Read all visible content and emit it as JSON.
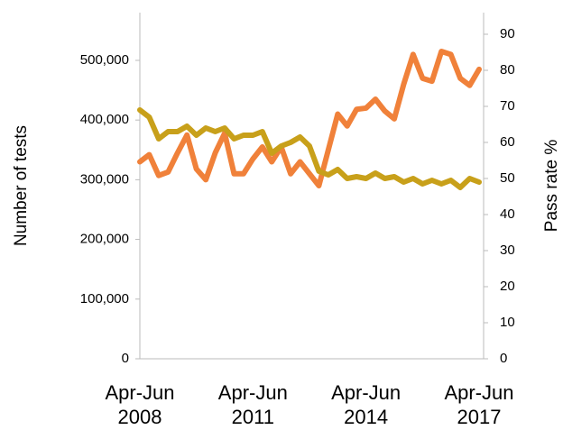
{
  "chart_data": {
    "type": "line",
    "y_label": "Number of tests",
    "y2_label": "Pass rate %",
    "categories": [
      "Apr-Jun 2008",
      null,
      null,
      null,
      null,
      null,
      null,
      null,
      null,
      null,
      null,
      null,
      "Apr-Jun 2011",
      null,
      null,
      null,
      null,
      null,
      null,
      null,
      null,
      null,
      null,
      null,
      "Apr-Jun 2014",
      null,
      null,
      null,
      null,
      null,
      null,
      null,
      null,
      null,
      null,
      null,
      "Apr-Jun 2017"
    ],
    "series": [
      {
        "name": "Number of tests",
        "color": "#f0813a",
        "axis": "y",
        "values": [
          330000,
          342000,
          307000,
          313000,
          345000,
          375000,
          318000,
          300000,
          345000,
          378000,
          310000,
          310000,
          335000,
          355000,
          330000,
          355000,
          310000,
          330000,
          310000,
          290000,
          350000,
          410000,
          390000,
          418000,
          420000,
          435000,
          415000,
          402000,
          460000,
          510000,
          470000,
          465000,
          515000,
          510000,
          470000,
          458000,
          485000
        ]
      },
      {
        "name": "Pass rate %",
        "color": "#c8a01a",
        "axis": "y2",
        "values": [
          69,
          67,
          61,
          63,
          63,
          64.5,
          62,
          64,
          63,
          64,
          61,
          62,
          62,
          63,
          57,
          59,
          60,
          61.5,
          59,
          52,
          51,
          52.5,
          50,
          50.5,
          50,
          51.5,
          50,
          50.5,
          49,
          50,
          48.5,
          49.5,
          48.5,
          49.5,
          47.5,
          50,
          49
        ]
      }
    ],
    "ylim": [
      0,
      580000
    ],
    "yticks": [
      0,
      {
        "value": 100000,
        "label": "100,000"
      },
      {
        "value": 200000,
        "label": "200,000"
      },
      {
        "value": 300000,
        "label": "300,000"
      },
      {
        "value": 400000,
        "label": "400,000"
      },
      {
        "value": 500000,
        "label": "500,000"
      }
    ],
    "y2lim": [
      0,
      96
    ],
    "y2ticks": [
      0,
      10,
      20,
      30,
      40,
      50,
      60,
      70,
      80,
      90
    ]
  }
}
